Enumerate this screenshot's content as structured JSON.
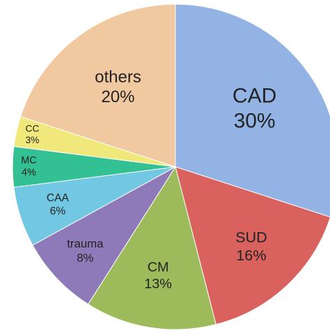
{
  "chart_data": {
    "type": "pie",
    "categories": [
      "CAD",
      "SUD",
      "CM",
      "trauma",
      "CAA",
      "MC",
      "CC",
      "others"
    ],
    "values": [
      30,
      16,
      13,
      8,
      6,
      4,
      3,
      20
    ],
    "value_labels": [
      "30%",
      "16%",
      "13%",
      "8%",
      "6%",
      "4%",
      "3%",
      "20%"
    ],
    "colors": [
      "#92b3e3",
      "#d9625f",
      "#9dbb5a",
      "#8e7ab8",
      "#72c7e2",
      "#33c093",
      "#f1e87c",
      "#f1c9a1"
    ]
  }
}
